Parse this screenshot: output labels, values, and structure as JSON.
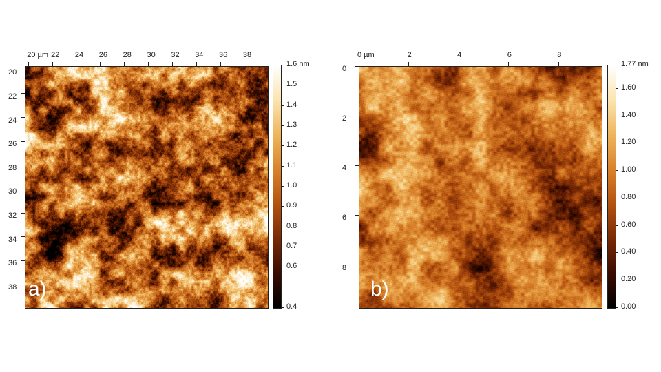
{
  "panels": [
    {
      "id": "a",
      "letter": "a)",
      "x_ticks": [
        "20 µm",
        "22",
        "24",
        "26",
        "28",
        "30",
        "32",
        "34",
        "36",
        "38"
      ],
      "y_ticks": [
        "20",
        "22",
        "24",
        "26",
        "28",
        "30",
        "32",
        "34",
        "36",
        "38"
      ],
      "x_range_um": [
        19.7,
        39.9
      ],
      "y_range_um": [
        19.7,
        39.9
      ],
      "colorbar_labels": [
        "1.6 nm",
        "1.5",
        "1.4",
        "1.3",
        "1.2",
        "1.1",
        "1.0",
        "0.9",
        "0.8",
        "0.7",
        "0.6",
        "0.4"
      ],
      "colorbar_values": [
        1.6,
        1.5,
        1.4,
        1.3,
        1.2,
        1.1,
        1.0,
        0.9,
        0.8,
        0.7,
        0.6,
        0.4
      ],
      "texture": "coarse"
    },
    {
      "id": "b",
      "letter": "b)",
      "x_ticks": [
        "0 µm",
        "2",
        "4",
        "6",
        "8"
      ],
      "y_ticks": [
        "0",
        "2",
        "4",
        "6",
        "8"
      ],
      "x_range_um": [
        0,
        9.7
      ],
      "y_range_um": [
        0,
        9.7
      ],
      "colorbar_labels": [
        "1.77 nm",
        "1.60",
        "1.40",
        "1.20",
        "1.00",
        "0.80",
        "0.60",
        "0.40",
        "0.20",
        "0.00"
      ],
      "colorbar_values": [
        1.77,
        1.6,
        1.4,
        1.2,
        1.0,
        0.8,
        0.6,
        0.4,
        0.2,
        0.0
      ],
      "texture": "fine"
    }
  ],
  "colormap": [
    "#000000",
    "#3a0c00",
    "#7a2a05",
    "#b4520f",
    "#d9822b",
    "#efb55c",
    "#fbe4b0",
    "#ffffff"
  ]
}
